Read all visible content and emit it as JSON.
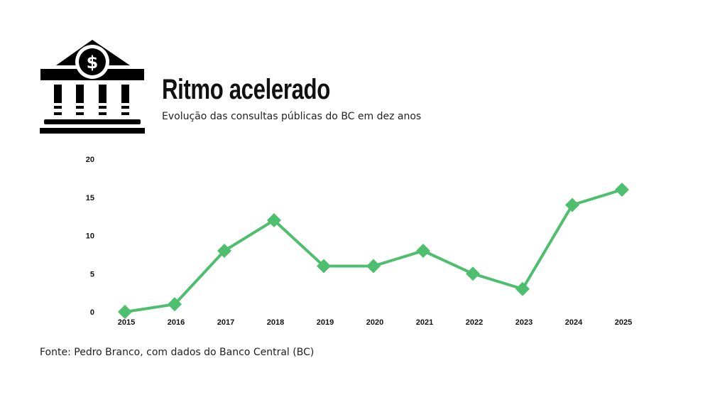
{
  "header": {
    "title": "Ritmo acelerado",
    "subtitle": "Evolução das consultas públicas do BC em dez anos",
    "icon": "bank-dollar-icon"
  },
  "footer": {
    "source": "Fonte: Pedro Branco, com dados do Banco Central (BC)"
  },
  "chart_data": {
    "type": "line",
    "title": "Ritmo acelerado",
    "subtitle": "Evolução das consultas públicas do BC em dez anos",
    "xlabel": "",
    "ylabel": "",
    "categories": [
      "2015",
      "2016",
      "2017",
      "2018",
      "2019",
      "2020",
      "2021",
      "2022",
      "2023",
      "2024",
      "2025"
    ],
    "values": [
      0,
      1,
      8,
      12,
      6,
      6,
      8,
      5,
      3,
      14,
      16
    ],
    "ylim": [
      0,
      20
    ],
    "yticks": [
      0,
      5,
      10,
      15,
      20
    ],
    "grid": false,
    "marker": "diamond",
    "color": "#4dbf6e"
  }
}
